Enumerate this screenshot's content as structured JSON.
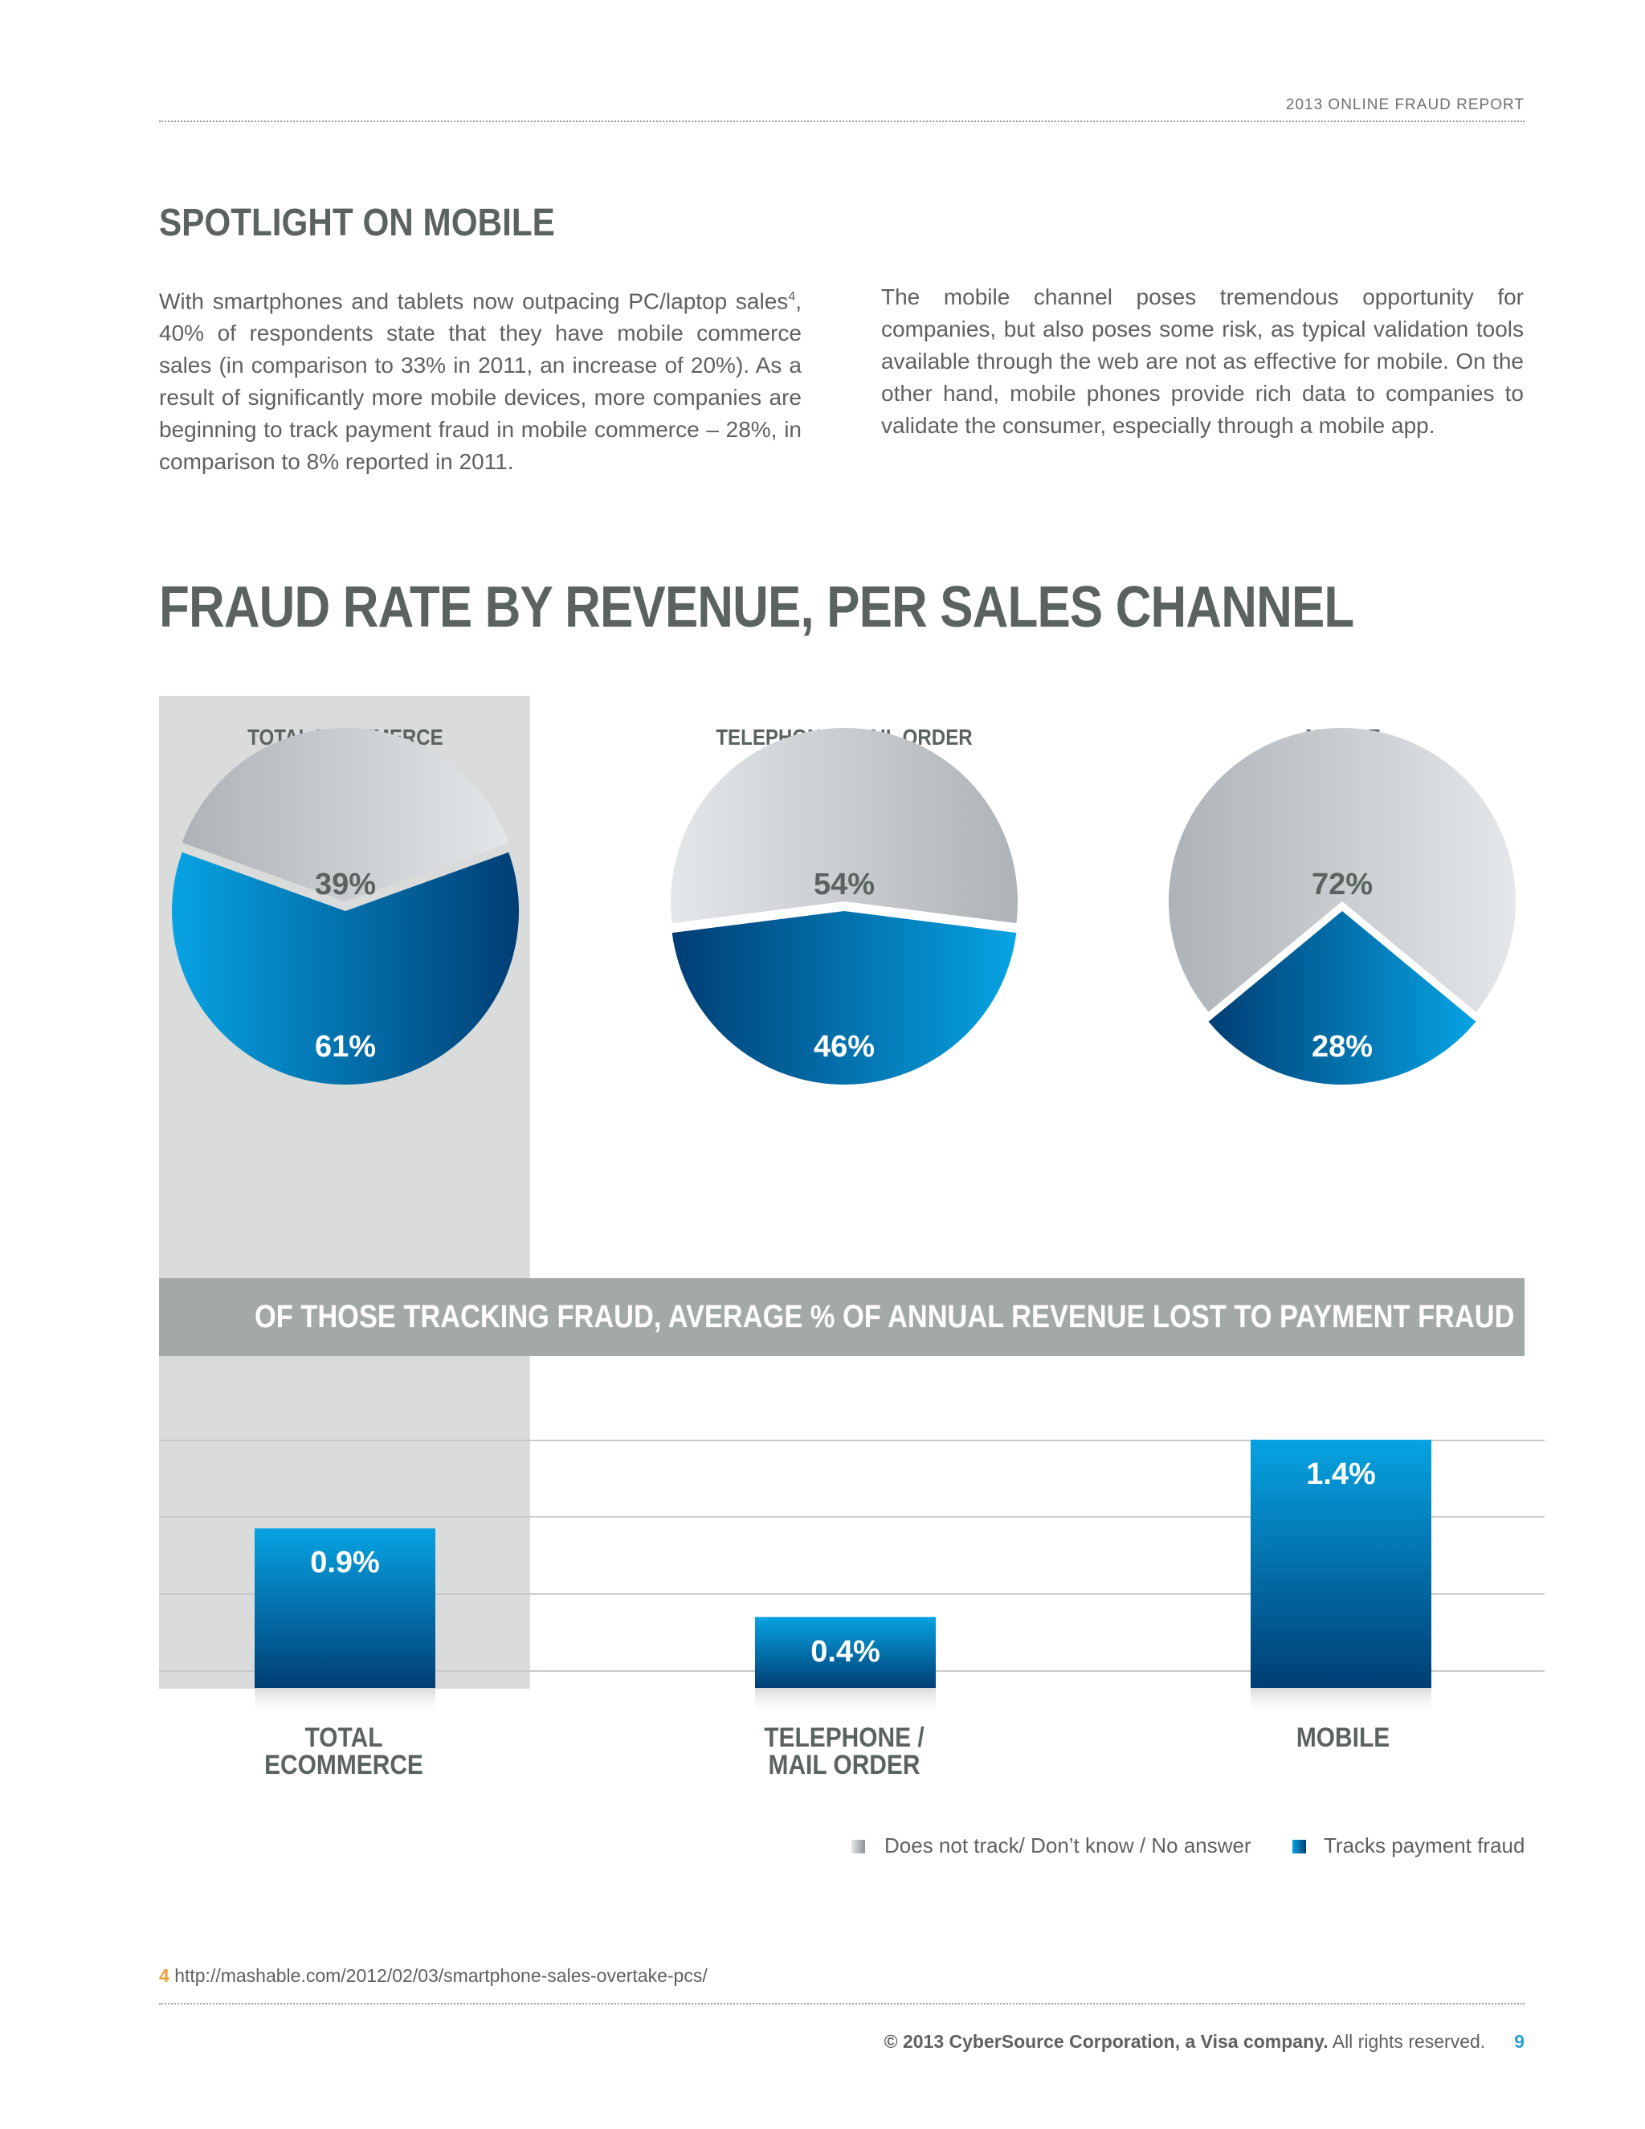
{
  "header": {
    "report_title": "2013 ONLINE FRAUD REPORT"
  },
  "section": {
    "title": "SPOTLIGHT ON MOBILE",
    "col1_text": "With smartphones and tablets now outpacing PC/laptop sales",
    "col1_sup": "4",
    "col1_text2": ", 40% of respondents state that they have mobile commerce sales (in comparison to 33% in 2011, an increase of 20%). As a result of significantly more mobile devices,  more companies are beginning to track payment fraud in mobile commerce – 28%, in comparison to 8% reported in 2011.",
    "col2_text": "The mobile channel poses tremendous opportunity for companies, but also poses some risk, as typical validation tools available through the web are not as effective for mobile. On the other hand, mobile phones provide rich data to companies to validate the consumer, especially through a mobile app."
  },
  "chart_data": [
    {
      "type": "pie",
      "title": "FRAUD RATE BY REVENUE, PER SALES CHANNEL",
      "pies": [
        {
          "label": "TOTAL ECOMMERCE",
          "slices": [
            {
              "series": "Does not track/ Don’t know / No answer",
              "value": 39,
              "text": "39%"
            },
            {
              "series": "Tracks payment fraud",
              "value": 61,
              "text": "61%"
            }
          ],
          "highlighted": true
        },
        {
          "label": "TELEPHONE / MAIL ORDER",
          "slices": [
            {
              "series": "Does not track/ Don’t know / No answer",
              "value": 54,
              "text": "54%"
            },
            {
              "series": "Tracks payment fraud",
              "value": 46,
              "text": "46%"
            }
          ]
        },
        {
          "label": "MOBILE",
          "slices": [
            {
              "series": "Does not track/ Don’t know / No answer",
              "value": 72,
              "text": "72%"
            },
            {
              "series": "Tracks payment fraud",
              "value": 28,
              "text": "28%"
            }
          ]
        }
      ]
    },
    {
      "type": "bar",
      "title": "OF THOSE TRACKING FRAUD, AVERAGE % OF ANNUAL REVENUE LOST TO PAYMENT FRAUD",
      "categories": [
        "TOTAL ECOMMERCE",
        "TELEPHONE / MAIL ORDER",
        "MOBILE"
      ],
      "category_lines": [
        [
          "TOTAL",
          "ECOMMERCE"
        ],
        [
          "TELEPHONE /",
          "MAIL ORDER"
        ],
        [
          "MOBILE"
        ]
      ],
      "values": [
        0.9,
        0.4,
        1.4
      ],
      "value_labels": [
        "0.9%",
        "0.4%",
        "1.4%"
      ],
      "ylim": [
        0,
        1.6
      ],
      "grid": true
    }
  ],
  "legend": [
    {
      "label": "Does not track/ Don’t know / No answer",
      "color": "#b3b7ba"
    },
    {
      "label": "Tracks payment fraud",
      "color": "#0a6fb2"
    }
  ],
  "colors": {
    "grey_light": "#e4e7ea",
    "grey_dark": "#aeb3b7",
    "blue_light": "#06a3e3",
    "blue_dark": "#003e74",
    "highlight": "#dadcdc",
    "banner": "#a3a9a6"
  },
  "footnote": {
    "number": "4",
    "text": "http://mashable.com/2012/02/03/smartphone-sales-overtake-pcs/"
  },
  "footer": {
    "copyright_bold": "© 2013 CyberSource Corporation, a Visa company.",
    "copyright_rest": " All rights reserved.",
    "page_number": "9"
  }
}
